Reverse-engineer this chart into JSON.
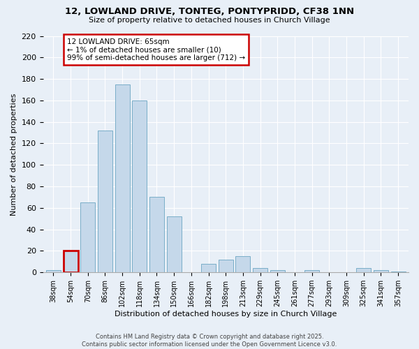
{
  "title_line1": "12, LOWLAND DRIVE, TONTEG, PONTYPRIDD, CF38 1NN",
  "title_line2": "Size of property relative to detached houses in Church Village",
  "xlabel": "Distribution of detached houses by size in Church Village",
  "ylabel": "Number of detached properties",
  "categories": [
    "38sqm",
    "54sqm",
    "70sqm",
    "86sqm",
    "102sqm",
    "118sqm",
    "134sqm",
    "150sqm",
    "166sqm",
    "182sqm",
    "198sqm",
    "213sqm",
    "229sqm",
    "245sqm",
    "261sqm",
    "277sqm",
    "293sqm",
    "309sqm",
    "325sqm",
    "341sqm",
    "357sqm"
  ],
  "values": [
    2,
    20,
    65,
    132,
    175,
    160,
    70,
    52,
    0,
    8,
    12,
    15,
    4,
    2,
    0,
    2,
    0,
    0,
    4,
    2,
    1
  ],
  "bar_color": "#c5d8ea",
  "bar_edge_color": "#7aaec8",
  "highlight_bar_index": 1,
  "highlight_edge_color": "#cc0000",
  "ylim": [
    0,
    220
  ],
  "yticks": [
    0,
    20,
    40,
    60,
    80,
    100,
    120,
    140,
    160,
    180,
    200,
    220
  ],
  "annotation_title": "12 LOWLAND DRIVE: 65sqm",
  "annotation_line1": "← 1% of detached houses are smaller (10)",
  "annotation_line2": "99% of semi-detached houses are larger (712) →",
  "annotation_box_color": "#ffffff",
  "annotation_border_color": "#cc0000",
  "background_color": "#e8eff7",
  "grid_color": "#ffffff",
  "footer_line1": "Contains HM Land Registry data © Crown copyright and database right 2025.",
  "footer_line2": "Contains public sector information licensed under the Open Government Licence v3.0."
}
